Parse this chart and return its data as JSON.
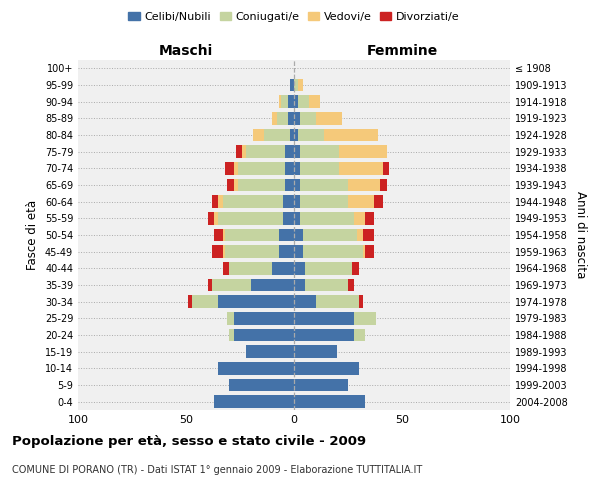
{
  "age_groups": [
    "0-4",
    "5-9",
    "10-14",
    "15-19",
    "20-24",
    "25-29",
    "30-34",
    "35-39",
    "40-44",
    "45-49",
    "50-54",
    "55-59",
    "60-64",
    "65-69",
    "70-74",
    "75-79",
    "80-84",
    "85-89",
    "90-94",
    "95-99",
    "100+"
  ],
  "birth_years": [
    "2004-2008",
    "1999-2003",
    "1994-1998",
    "1989-1993",
    "1984-1988",
    "1979-1983",
    "1974-1978",
    "1969-1973",
    "1964-1968",
    "1959-1963",
    "1954-1958",
    "1949-1953",
    "1944-1948",
    "1939-1943",
    "1934-1938",
    "1929-1933",
    "1924-1928",
    "1919-1923",
    "1914-1918",
    "1909-1913",
    "≤ 1908"
  ],
  "maschi": {
    "celibi": [
      37,
      30,
      35,
      22,
      28,
      28,
      35,
      20,
      10,
      7,
      7,
      5,
      5,
      4,
      4,
      4,
      2,
      3,
      3,
      2,
      0
    ],
    "coniugati": [
      0,
      0,
      0,
      0,
      2,
      3,
      12,
      18,
      20,
      25,
      25,
      30,
      28,
      22,
      22,
      18,
      12,
      5,
      3,
      0,
      0
    ],
    "vedovi": [
      0,
      0,
      0,
      0,
      0,
      0,
      0,
      0,
      0,
      1,
      1,
      2,
      2,
      2,
      2,
      2,
      5,
      2,
      1,
      0,
      0
    ],
    "divorziati": [
      0,
      0,
      0,
      0,
      0,
      0,
      2,
      2,
      3,
      5,
      4,
      3,
      3,
      3,
      4,
      3,
      0,
      0,
      0,
      0,
      0
    ]
  },
  "femmine": {
    "nubili": [
      33,
      25,
      30,
      20,
      28,
      28,
      10,
      5,
      5,
      4,
      4,
      3,
      3,
      3,
      3,
      3,
      2,
      3,
      2,
      0,
      0
    ],
    "coniugate": [
      0,
      0,
      0,
      0,
      5,
      10,
      20,
      20,
      22,
      28,
      25,
      25,
      22,
      22,
      18,
      18,
      12,
      7,
      5,
      2,
      0
    ],
    "vedove": [
      0,
      0,
      0,
      0,
      0,
      0,
      0,
      0,
      0,
      1,
      3,
      5,
      12,
      15,
      20,
      22,
      25,
      12,
      5,
      2,
      0
    ],
    "divorziate": [
      0,
      0,
      0,
      0,
      0,
      0,
      2,
      3,
      3,
      4,
      5,
      4,
      4,
      3,
      3,
      0,
      0,
      0,
      0,
      0,
      0
    ]
  },
  "colors": {
    "celibi": "#4472a8",
    "coniugati": "#c5d4a0",
    "vedovi": "#f5c97a",
    "divorziati": "#cc2222"
  },
  "xlim": [
    -100,
    100
  ],
  "xticks": [
    -100,
    -50,
    0,
    50,
    100
  ],
  "xticklabels": [
    "100",
    "50",
    "0",
    "50",
    "100"
  ],
  "title": "Popolazione per età, sesso e stato civile - 2009",
  "subtitle": "COMUNE DI PORANO (TR) - Dati ISTAT 1° gennaio 2009 - Elaborazione TUTTITALIA.IT",
  "ylabel_left": "Fasce di età",
  "ylabel_right": "Anni di nascita",
  "label_maschi": "Maschi",
  "label_femmine": "Femmine",
  "legend_labels": [
    "Celibi/Nubili",
    "Coniugati/e",
    "Vedovi/e",
    "Divorziati/e"
  ],
  "bg_color": "#f0f0f0",
  "plot_bg": "#ffffff"
}
